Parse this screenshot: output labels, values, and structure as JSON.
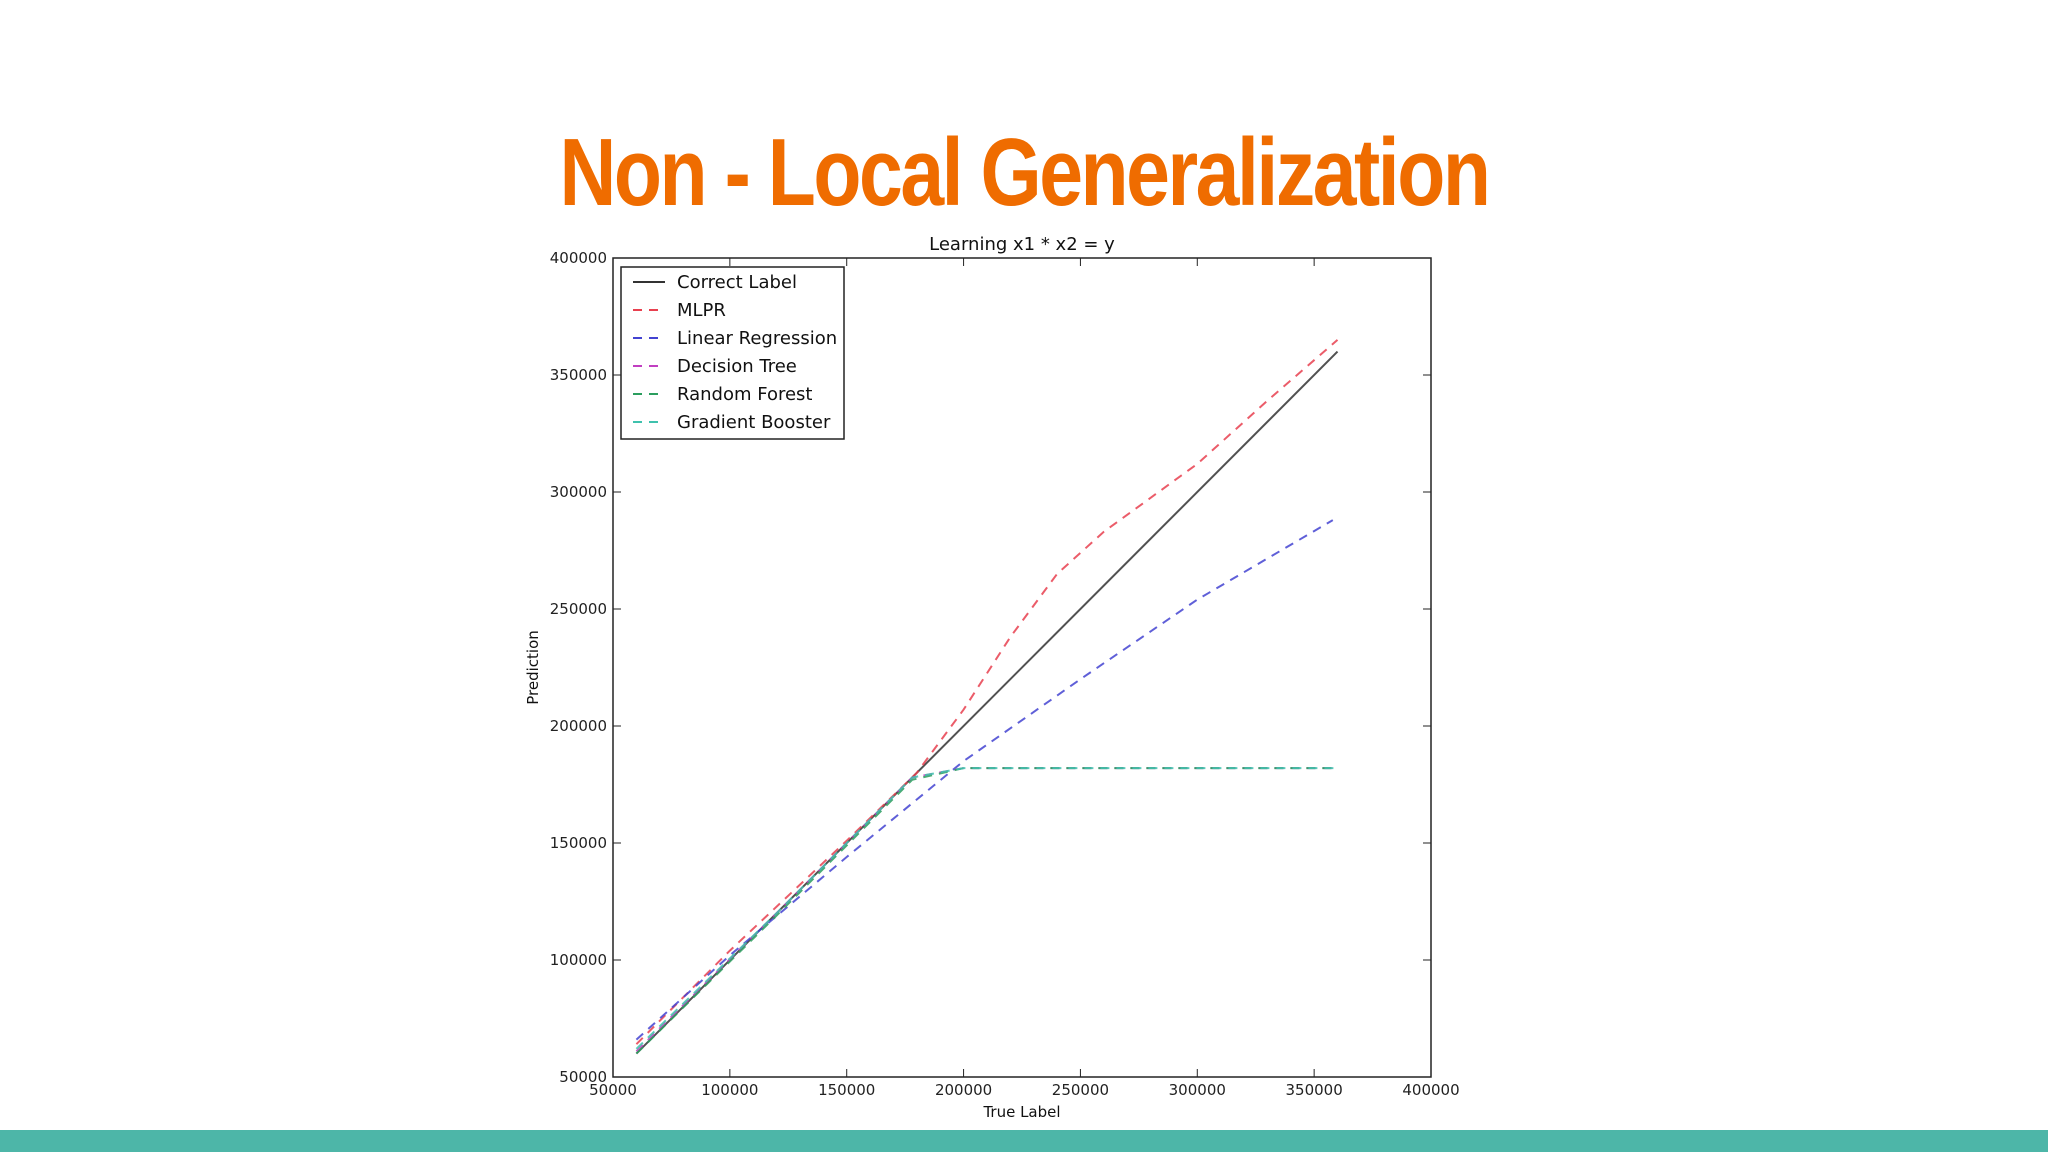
{
  "slide": {
    "title": "Non - Local Generalization",
    "title_color": "#ef6c00",
    "footer_color": "#4db6a8"
  },
  "chart_data": {
    "type": "line",
    "title": "Learning x1 * x2 = y",
    "xlabel": "True Label",
    "ylabel": "Prediction",
    "xlim": [
      50000,
      400000
    ],
    "ylim": [
      50000,
      400000
    ],
    "xticks": [
      50000,
      100000,
      150000,
      200000,
      250000,
      300000,
      350000,
      400000
    ],
    "yticks": [
      50000,
      100000,
      150000,
      200000,
      250000,
      300000,
      350000,
      400000
    ],
    "tick_labels": {
      "x": [
        "50000",
        "100000",
        "150000",
        "200000",
        "250000",
        "300000",
        "350000",
        "400000"
      ],
      "y": [
        "50000",
        "100000",
        "150000",
        "200000",
        "250000",
        "300000",
        "350000",
        "400000"
      ]
    },
    "grid": false,
    "legend": "top-left",
    "series": [
      {
        "name": "Correct Label",
        "color": "#333333",
        "style": "solid",
        "x": [
          60000,
          360000
        ],
        "y": [
          60000,
          360000
        ]
      },
      {
        "name": "MLPR",
        "color": "#e8404f",
        "style": "dashed",
        "x": [
          60000,
          100000,
          150000,
          180000,
          200000,
          220000,
          240000,
          260000,
          300000,
          330000,
          360000
        ],
        "y": [
          64000,
          104000,
          151000,
          180000,
          207000,
          238000,
          265000,
          283000,
          312000,
          339000,
          365000
        ]
      },
      {
        "name": "Linear Regression",
        "color": "#4343d1",
        "style": "dashed",
        "x": [
          60000,
          100000,
          150000,
          200000,
          250000,
          300000,
          358000
        ],
        "y": [
          66000,
          102000,
          144000,
          185000,
          220000,
          254000,
          288000
        ]
      },
      {
        "name": "Decision Tree",
        "color": "#c13fc1",
        "style": "dashed",
        "x": [
          60000,
          120000,
          178000,
          200000,
          300000,
          360000
        ],
        "y": [
          61000,
          120000,
          178000,
          182000,
          182000,
          182000
        ]
      },
      {
        "name": "Random Forest",
        "color": "#2b9e5e",
        "style": "dashed",
        "x": [
          60000,
          120000,
          178000,
          200000,
          300000,
          360000
        ],
        "y": [
          60000,
          119000,
          177000,
          182000,
          182000,
          182000
        ]
      },
      {
        "name": "Gradient Booster",
        "color": "#3fc1ad",
        "style": "dashed",
        "x": [
          60000,
          120000,
          178000,
          200000,
          300000,
          360000
        ],
        "y": [
          62000,
          120000,
          178000,
          182000,
          182000,
          182000
        ]
      }
    ]
  }
}
